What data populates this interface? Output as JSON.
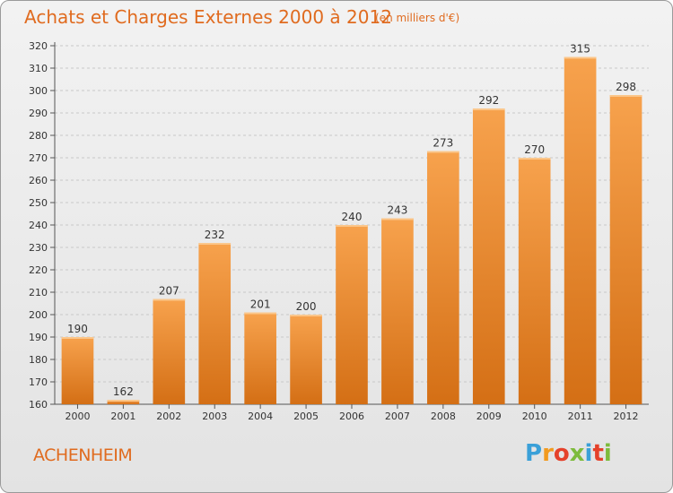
{
  "header": {
    "title": "Achats et Charges Externes 2000 à 2012",
    "subtitle": "(en milliers d'€)"
  },
  "footer": {
    "commune": "ACHENHEIM",
    "logo_text": "Proxiti"
  },
  "colors": {
    "bar_light": "#f7a24d",
    "bar_dark": "#d46f15",
    "title": "#e06b1f",
    "grid": "#c8c8c8"
  },
  "chart_data": {
    "type": "bar",
    "title": "Achats et Charges Externes 2000 à 2012",
    "subtitle": "(en milliers d'€)",
    "categories": [
      "2000",
      "2001",
      "2002",
      "2003",
      "2004",
      "2005",
      "2006",
      "2007",
      "2008",
      "2009",
      "2010",
      "2011",
      "2012"
    ],
    "values": [
      190,
      162,
      207,
      232,
      201,
      200,
      240,
      243,
      273,
      292,
      270,
      315,
      298
    ],
    "ylim": [
      160,
      320
    ],
    "yticks": [
      160,
      170,
      180,
      190,
      200,
      210,
      220,
      230,
      240,
      250,
      260,
      270,
      280,
      290,
      300,
      310,
      320
    ],
    "grid": true,
    "data_labels": true
  }
}
